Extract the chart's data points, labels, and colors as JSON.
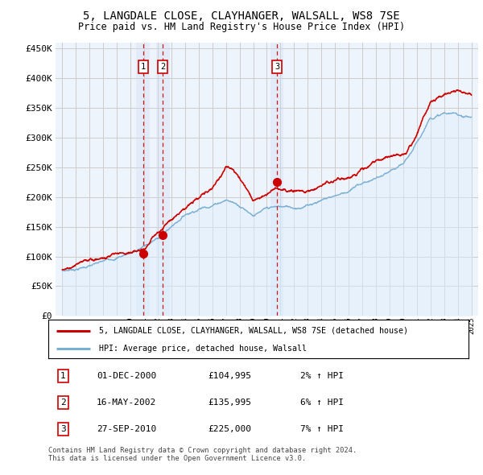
{
  "title": "5, LANGDALE CLOSE, CLAYHANGER, WALSALL, WS8 7SE",
  "subtitle": "Price paid vs. HM Land Registry's House Price Index (HPI)",
  "ylabel_ticks": [
    0,
    50000,
    100000,
    150000,
    200000,
    250000,
    300000,
    350000,
    400000,
    450000
  ],
  "ylabel_labels": [
    "£0",
    "£50K",
    "£100K",
    "£150K",
    "£200K",
    "£250K",
    "£300K",
    "£350K",
    "£400K",
    "£450K"
  ],
  "xlim": [
    1994.5,
    2025.5
  ],
  "ylim": [
    0,
    460000
  ],
  "sale_dates_year": [
    2000.917,
    2002.37,
    2010.74
  ],
  "sale_prices": [
    104995,
    135995,
    225000
  ],
  "sale_labels": [
    "1",
    "2",
    "3"
  ],
  "legend_line1": "5, LANGDALE CLOSE, CLAYHANGER, WALSALL, WS8 7SE (detached house)",
  "legend_line2": "HPI: Average price, detached house, Walsall",
  "table_data": [
    [
      "1",
      "01-DEC-2000",
      "£104,995",
      "2% ↑ HPI"
    ],
    [
      "2",
      "16-MAY-2002",
      "£135,995",
      "6% ↑ HPI"
    ],
    [
      "3",
      "27-SEP-2010",
      "£225,000",
      "7% ↑ HPI"
    ]
  ],
  "footnote": "Contains HM Land Registry data © Crown copyright and database right 2024.\nThis data is licensed under the Open Government Licence v3.0.",
  "price_color": "#cc0000",
  "hpi_color": "#7aafd4",
  "hpi_fill_color": "#ddeeff",
  "marker_band_color": "#ccddf0",
  "grid_color": "#cccccc",
  "background_color": "#ffffff",
  "chart_bg_color": "#eef4fb"
}
